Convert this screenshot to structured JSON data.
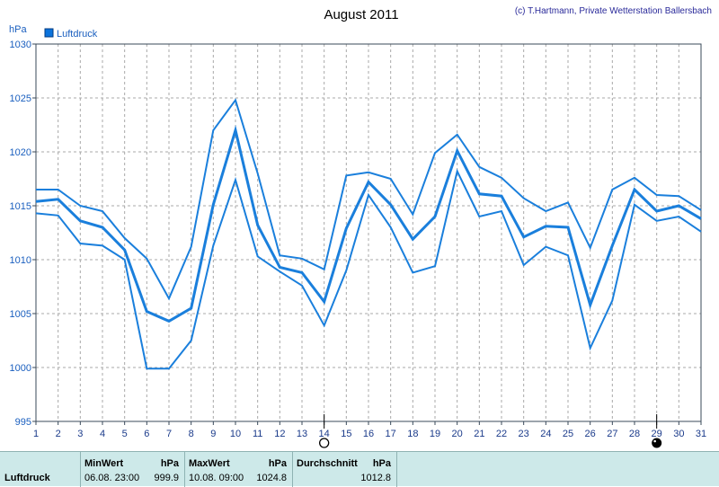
{
  "header": {
    "title": "August 2011",
    "copyright": "(c) T.Hartmann, Private Wetterstation Ballersbach"
  },
  "chart_data": {
    "type": "line",
    "title": "August 2011",
    "ylabel": "hPa",
    "ylim": [
      995,
      1030
    ],
    "yticks": [
      995,
      1000,
      1005,
      1010,
      1015,
      1020,
      1025,
      1030
    ],
    "x": [
      1,
      2,
      3,
      4,
      5,
      6,
      7,
      8,
      9,
      10,
      11,
      12,
      13,
      14,
      15,
      16,
      17,
      18,
      19,
      20,
      21,
      22,
      23,
      24,
      25,
      26,
      27,
      28,
      29,
      30,
      31
    ],
    "grid": true,
    "legend": "top-left",
    "series": [
      {
        "name": "Luftdruck",
        "role": "mean",
        "values": [
          1015.4,
          1015.6,
          1013.6,
          1013.0,
          1010.9,
          1005.2,
          1004.3,
          1005.5,
          1015.1,
          1022.0,
          1013.2,
          1009.3,
          1008.8,
          1006.1,
          1012.9,
          1017.2,
          1015.1,
          1011.9,
          1014.0,
          1020.1,
          1016.1,
          1015.9,
          1012.1,
          1013.1,
          1013.0,
          1005.8,
          1011.3,
          1016.5,
          1014.5,
          1015.0,
          1013.8
        ]
      },
      {
        "role": "max",
        "values": [
          1016.5,
          1016.5,
          1015.0,
          1014.5,
          1012.0,
          1010.1,
          1006.4,
          1011.2,
          1022.0,
          1024.8,
          1018.0,
          1010.4,
          1010.1,
          1009.1,
          1017.8,
          1018.1,
          1017.5,
          1014.2,
          1019.9,
          1021.6,
          1018.6,
          1017.6,
          1015.7,
          1014.5,
          1015.3,
          1011.1,
          1016.5,
          1017.6,
          1016.0,
          1015.9,
          1014.6
        ]
      },
      {
        "role": "min",
        "values": [
          1014.3,
          1014.1,
          1011.5,
          1011.3,
          1010.0,
          999.9,
          999.9,
          1002.5,
          1011.3,
          1017.4,
          1010.3,
          1008.9,
          1007.6,
          1003.9,
          1009.0,
          1016.0,
          1013.0,
          1008.8,
          1009.4,
          1018.2,
          1014.0,
          1014.5,
          1009.5,
          1011.2,
          1010.4,
          1001.8,
          1006.2,
          1015.1,
          1013.6,
          1014.0,
          1012.6
        ]
      }
    ],
    "colors": {
      "line": "#1a7fdc",
      "grid": "#a9a9a9",
      "axis": "#3a4a5a",
      "legend_box": "#0b73dc"
    },
    "markers": [
      {
        "day": 14,
        "type": "new-moon-outline"
      },
      {
        "day": 29,
        "type": "full-moon-filled"
      }
    ]
  },
  "legend": {
    "label": "Luftdruck"
  },
  "stats": {
    "row_label": "Luftdruck",
    "min": {
      "title": "MinWert",
      "unit": "hPa",
      "datetime": "06.08.  23:00",
      "value": "999.9"
    },
    "max": {
      "title": "MaxWert",
      "unit": "hPa",
      "datetime": "10.08.  09:00",
      "value": "1024.8"
    },
    "avg": {
      "title": "Durchschnitt",
      "unit": "hPa",
      "value": "1012.8"
    }
  }
}
